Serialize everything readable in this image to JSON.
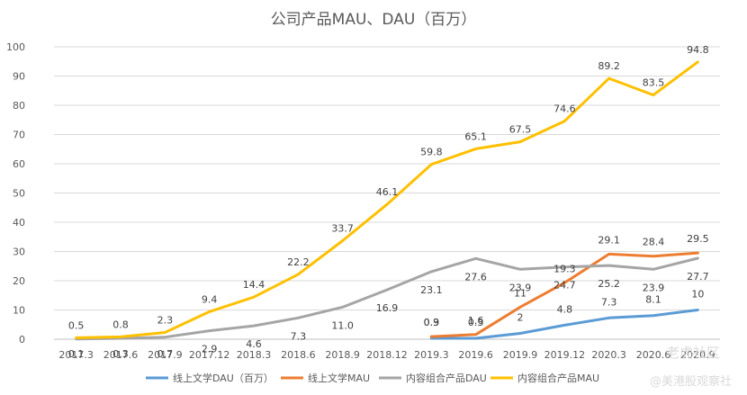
{
  "chart_data": {
    "type": "line",
    "title": "公司产品MAU、DAU（百万）",
    "xlabel": "",
    "ylabel": "",
    "ylim": [
      0,
      100
    ],
    "yticks": [
      0,
      10,
      20,
      30,
      40,
      50,
      60,
      70,
      80,
      90,
      100
    ],
    "grid": true,
    "legend_position": "bottom",
    "categories": [
      "2017.3",
      "2017.6",
      "2017.9",
      "2017.12",
      "2018.3",
      "2018.6",
      "2018.9",
      "2018.12",
      "2019.3",
      "2019.6",
      "2019.9",
      "2019.12",
      "2020.3",
      "2020.6",
      "2020.9"
    ],
    "series": [
      {
        "name": "线上文学DAU（百万）",
        "color": "#5B9BD5",
        "values": [
          null,
          null,
          null,
          null,
          null,
          null,
          null,
          null,
          0.3,
          0.3,
          2,
          4.8,
          7.3,
          8.1,
          10
        ],
        "labels": [
          null,
          null,
          null,
          null,
          null,
          null,
          null,
          null,
          "0.3",
          "0.3",
          "2",
          "4.8",
          "7.3",
          "8.1",
          "10"
        ]
      },
      {
        "name": "线上文学MAU",
        "color": "#ED7D31",
        "values": [
          null,
          null,
          null,
          null,
          null,
          null,
          null,
          null,
          0.9,
          1.6,
          11,
          19.3,
          29.1,
          28.4,
          29.5
        ],
        "labels": [
          null,
          null,
          null,
          null,
          null,
          null,
          null,
          null,
          "0.9",
          "1.6",
          "11",
          "19.3",
          "29.1",
          "28.4",
          "29.5"
        ]
      },
      {
        "name": "内容组合产品DAU",
        "color": "#A5A5A5",
        "values": [
          0.1,
          0.3,
          0.7,
          2.9,
          4.6,
          7.3,
          11.0,
          16.9,
          23.1,
          27.6,
          23.9,
          24.7,
          25.2,
          23.9,
          27.7
        ],
        "labels": [
          "0.1",
          "0.3",
          "0.7",
          "2.9",
          "4.6",
          "7.3",
          "11.0",
          "16.9",
          "23.1",
          "27.6",
          "23.9",
          "24.7",
          "25.2",
          "23.9",
          "27.7"
        ]
      },
      {
        "name": "内容组合产品MAU",
        "color": "#FFC000",
        "values": [
          0.5,
          0.8,
          2.3,
          9.4,
          14.4,
          22.2,
          33.7,
          46.1,
          59.8,
          65.1,
          67.5,
          74.6,
          89.2,
          83.5,
          94.8
        ],
        "labels": [
          "0.5",
          "0.8",
          "2.3",
          "9.4",
          "14.4",
          "22.2",
          "33.7",
          "46.1",
          "59.8",
          "65.1",
          "67.5",
          "74.6",
          "89.2",
          "83.5",
          "94.8"
        ]
      }
    ],
    "watermark": {
      "text1": "老虎社区",
      "text2": "@美港股观察社"
    }
  }
}
